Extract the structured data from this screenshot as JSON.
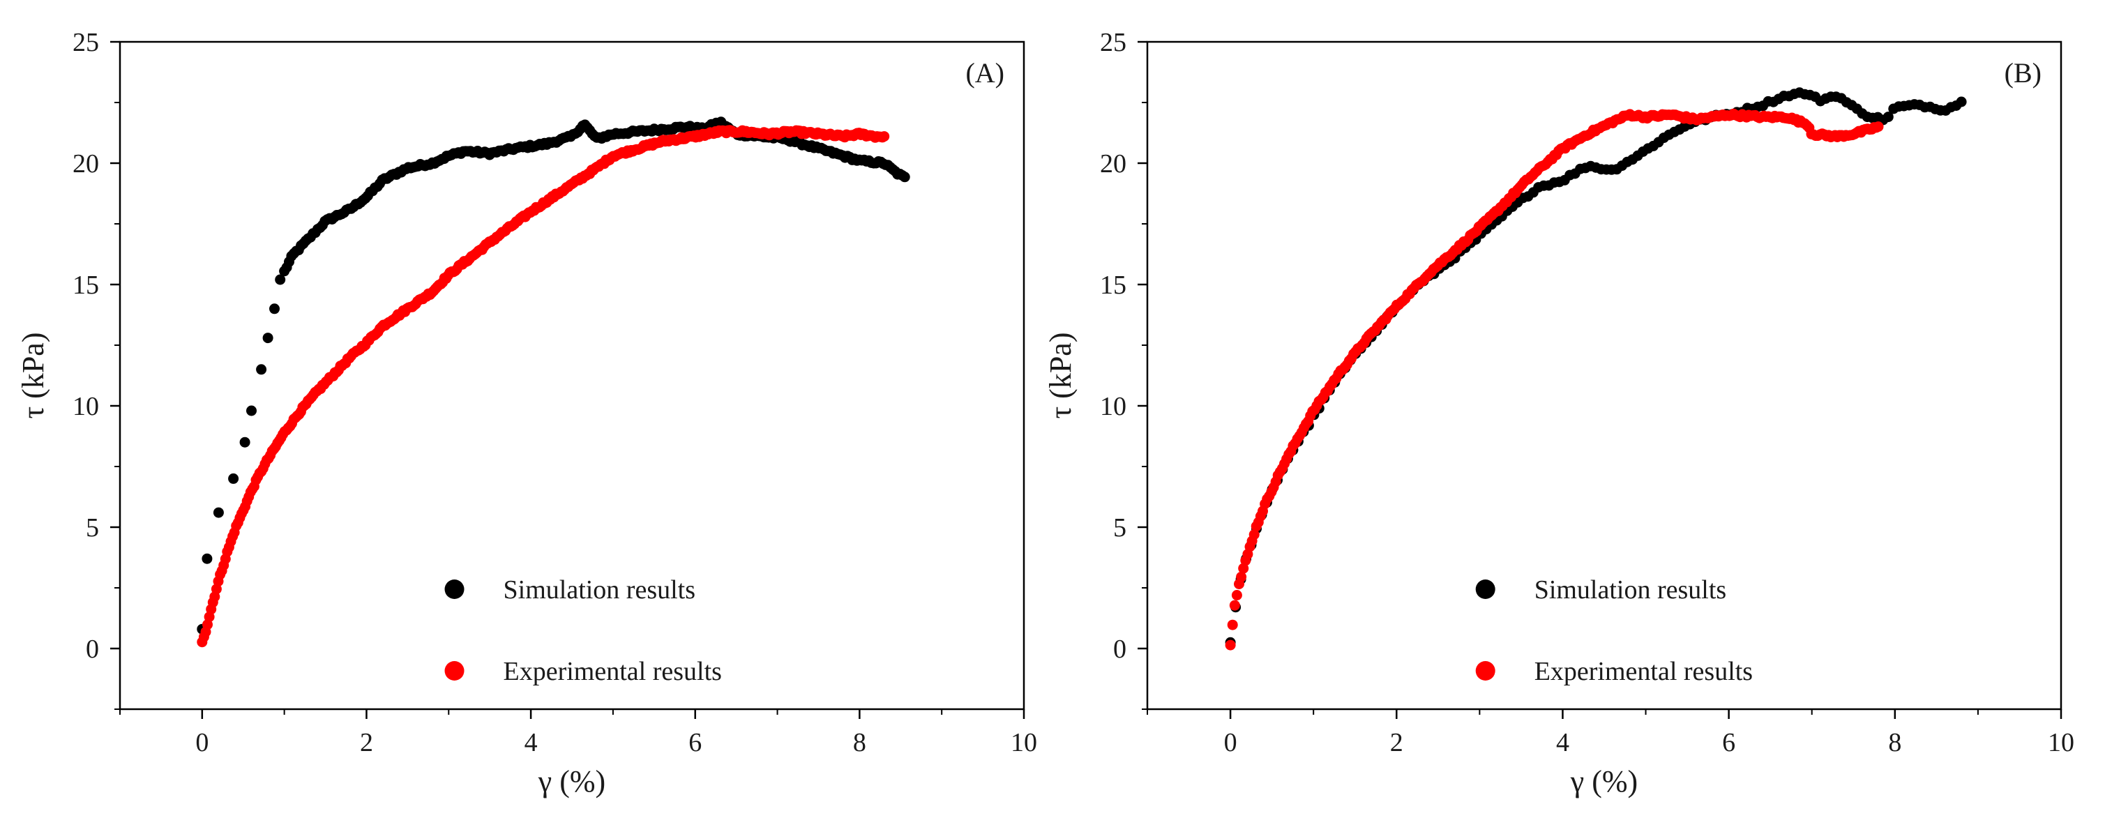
{
  "chart_data": [
    {
      "type": "scatter",
      "panel_label": "(A)",
      "xlabel": "γ (%)",
      "ylabel": "τ (kPa)",
      "xlim": [
        -1,
        10
      ],
      "ylim": [
        -2.5,
        25
      ],
      "xticks": [
        0,
        2,
        4,
        6,
        8,
        10
      ],
      "yticks": [
        0,
        5,
        10,
        15,
        20,
        25
      ],
      "tick_labels_x": [
        "0",
        "2",
        "4",
        "6",
        "8",
        "10"
      ],
      "tick_labels_y": [
        "0",
        "5",
        "10",
        "15",
        "20",
        "25"
      ],
      "grid": false,
      "legend_placement": "bottom-right",
      "series": [
        {
          "name": "Simulation results",
          "color": "#000000",
          "anchors": [
            [
              0.0,
              0.8
            ],
            [
              0.06,
              3.7
            ],
            [
              0.2,
              5.6
            ],
            [
              0.38,
              7.0
            ],
            [
              0.52,
              8.5
            ],
            [
              0.6,
              9.8
            ],
            [
              0.72,
              11.5
            ],
            [
              0.8,
              12.8
            ],
            [
              0.88,
              14.0
            ],
            [
              0.95,
              15.2
            ],
            [
              1.1,
              16.2
            ],
            [
              1.3,
              16.9
            ],
            [
              1.5,
              17.6
            ],
            [
              1.8,
              18.1
            ],
            [
              2.0,
              18.6
            ],
            [
              2.2,
              19.3
            ],
            [
              2.5,
              19.8
            ],
            [
              2.8,
              20.0
            ],
            [
              3.0,
              20.3
            ],
            [
              3.2,
              20.5
            ],
            [
              3.5,
              20.4
            ],
            [
              3.8,
              20.6
            ],
            [
              4.2,
              20.8
            ],
            [
              4.5,
              21.1
            ],
            [
              4.65,
              21.6
            ],
            [
              4.8,
              21.0
            ],
            [
              5.0,
              21.2
            ],
            [
              5.3,
              21.3
            ],
            [
              5.6,
              21.4
            ],
            [
              5.9,
              21.5
            ],
            [
              6.1,
              21.4
            ],
            [
              6.3,
              21.7
            ],
            [
              6.5,
              21.2
            ],
            [
              6.8,
              21.1
            ],
            [
              7.1,
              21.0
            ],
            [
              7.4,
              20.7
            ],
            [
              7.7,
              20.4
            ],
            [
              8.0,
              20.1
            ],
            [
              8.3,
              20.0
            ],
            [
              8.45,
              19.6
            ],
            [
              8.55,
              19.4
            ]
          ],
          "point_count": 260,
          "sparse_before": 1.0
        },
        {
          "name": "Experimental results",
          "color": "#ff0000",
          "anchors": [
            [
              0.0,
              0.3
            ],
            [
              0.05,
              0.8
            ],
            [
              0.1,
              1.5
            ],
            [
              0.2,
              2.8
            ],
            [
              0.3,
              3.9
            ],
            [
              0.4,
              4.9
            ],
            [
              0.5,
              5.7
            ],
            [
              0.6,
              6.5
            ],
            [
              0.7,
              7.2
            ],
            [
              0.8,
              7.8
            ],
            [
              1.0,
              8.9
            ],
            [
              1.2,
              9.8
            ],
            [
              1.4,
              10.6
            ],
            [
              1.6,
              11.3
            ],
            [
              1.8,
              12.0
            ],
            [
              2.0,
              12.6
            ],
            [
              2.2,
              13.3
            ],
            [
              2.5,
              14.0
            ],
            [
              2.8,
              14.7
            ],
            [
              3.0,
              15.4
            ],
            [
              3.3,
              16.2
            ],
            [
              3.6,
              17.0
            ],
            [
              4.0,
              18.0
            ],
            [
              4.4,
              18.9
            ],
            [
              4.8,
              19.8
            ],
            [
              5.0,
              20.3
            ],
            [
              5.3,
              20.6
            ],
            [
              5.6,
              20.9
            ],
            [
              6.0,
              21.1
            ],
            [
              6.3,
              21.3
            ],
            [
              6.6,
              21.3
            ],
            [
              6.9,
              21.2
            ],
            [
              7.2,
              21.3
            ],
            [
              7.5,
              21.2
            ],
            [
              7.8,
              21.1
            ],
            [
              8.0,
              21.2
            ],
            [
              8.2,
              21.1
            ],
            [
              8.3,
              21.1
            ]
          ],
          "point_count": 380,
          "sparse_before": 0
        }
      ]
    },
    {
      "type": "scatter",
      "panel_label": "(B)",
      "xlabel": "γ (%)",
      "ylabel": "τ (kPa)",
      "xlim": [
        -1,
        10
      ],
      "ylim": [
        -2.5,
        25
      ],
      "xticks": [
        0,
        2,
        4,
        6,
        8,
        10
      ],
      "yticks": [
        0,
        5,
        10,
        15,
        20,
        25
      ],
      "tick_labels_x": [
        "0",
        "2",
        "4",
        "6",
        "8",
        "10"
      ],
      "tick_labels_y": [
        "0",
        "5",
        "10",
        "15",
        "20",
        "25"
      ],
      "grid": false,
      "legend_placement": "bottom-right",
      "series": [
        {
          "name": "Simulation results",
          "color": "#000000",
          "anchors": [
            [
              0.0,
              0.2
            ],
            [
              0.05,
              1.5
            ],
            [
              0.1,
              2.5
            ],
            [
              0.2,
              3.8
            ],
            [
              0.3,
              4.8
            ],
            [
              0.5,
              6.5
            ],
            [
              0.7,
              7.9
            ],
            [
              0.9,
              9.0
            ],
            [
              1.1,
              10.1
            ],
            [
              1.3,
              11.2
            ],
            [
              1.6,
              12.5
            ],
            [
              1.9,
              13.7
            ],
            [
              2.2,
              14.8
            ],
            [
              2.5,
              15.6
            ],
            [
              2.8,
              16.4
            ],
            [
              3.1,
              17.3
            ],
            [
              3.4,
              18.2
            ],
            [
              3.7,
              19.0
            ],
            [
              4.0,
              19.3
            ],
            [
              4.3,
              19.9
            ],
            [
              4.6,
              19.7
            ],
            [
              4.9,
              20.3
            ],
            [
              5.2,
              21.0
            ],
            [
              5.5,
              21.6
            ],
            [
              5.8,
              21.9
            ],
            [
              6.1,
              22.1
            ],
            [
              6.4,
              22.4
            ],
            [
              6.7,
              22.8
            ],
            [
              6.9,
              22.9
            ],
            [
              7.1,
              22.6
            ],
            [
              7.3,
              22.8
            ],
            [
              7.5,
              22.3
            ],
            [
              7.7,
              21.9
            ],
            [
              7.9,
              21.8
            ],
            [
              8.0,
              22.3
            ],
            [
              8.3,
              22.4
            ],
            [
              8.6,
              22.2
            ],
            [
              8.8,
              22.5
            ]
          ],
          "point_count": 140,
          "sparse_before": 0
        },
        {
          "name": "Experimental results",
          "color": "#ff0000",
          "anchors": [
            [
              0.0,
              0.2
            ],
            [
              0.05,
              1.8
            ],
            [
              0.1,
              2.6
            ],
            [
              0.2,
              3.8
            ],
            [
              0.3,
              4.9
            ],
            [
              0.4,
              5.8
            ],
            [
              0.6,
              7.3
            ],
            [
              0.8,
              8.6
            ],
            [
              1.0,
              9.8
            ],
            [
              1.3,
              11.3
            ],
            [
              1.6,
              12.6
            ],
            [
              2.0,
              14.1
            ],
            [
              2.4,
              15.5
            ],
            [
              2.8,
              16.7
            ],
            [
              3.2,
              18.0
            ],
            [
              3.6,
              19.4
            ],
            [
              4.0,
              20.6
            ],
            [
              4.3,
              21.2
            ],
            [
              4.6,
              21.7
            ],
            [
              4.8,
              22.0
            ],
            [
              5.0,
              21.9
            ],
            [
              5.3,
              22.0
            ],
            [
              5.6,
              21.8
            ],
            [
              6.0,
              22.0
            ],
            [
              6.4,
              21.9
            ],
            [
              6.7,
              21.9
            ],
            [
              6.95,
              21.6
            ],
            [
              7.0,
              21.2
            ],
            [
              7.3,
              21.1
            ],
            [
              7.5,
              21.2
            ],
            [
              7.7,
              21.4
            ],
            [
              7.8,
              21.5
            ]
          ],
          "point_count": 300,
          "sparse_before": 0
        }
      ]
    }
  ]
}
